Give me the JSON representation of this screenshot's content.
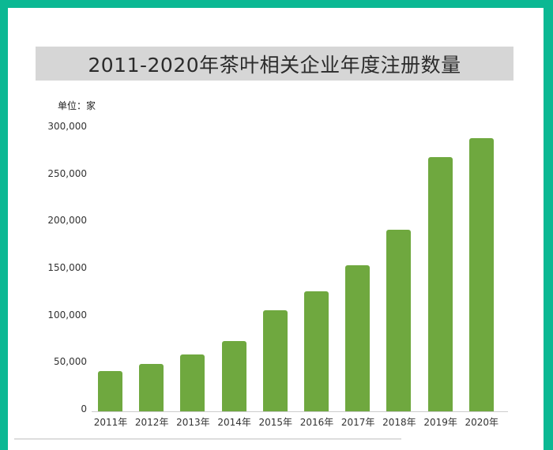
{
  "title": "2011-2020年茶叶相关企业年度注册数量",
  "unit_label": "单位：家",
  "colors": {
    "frame": "#0bb893",
    "bar": "#6fa83f",
    "title_bg": "#d6d6d6"
  },
  "chart_data": {
    "type": "bar",
    "title": "2011-2020年茶叶相关企业年度注册数量",
    "xlabel": "",
    "ylabel": "单位：家",
    "categories": [
      "2011年",
      "2012年",
      "2013年",
      "2014年",
      "2015年",
      "2016年",
      "2017年",
      "2018年",
      "2019年",
      "2020年"
    ],
    "values": [
      43000,
      50000,
      60000,
      75000,
      107000,
      127000,
      155000,
      193000,
      270000,
      290000
    ],
    "ylim": [
      0,
      300000
    ],
    "yticks": [
      "0",
      "50,000",
      "100,000",
      "150,000",
      "200,000",
      "250,000",
      "300,000"
    ],
    "grid": false,
    "legend": null
  }
}
